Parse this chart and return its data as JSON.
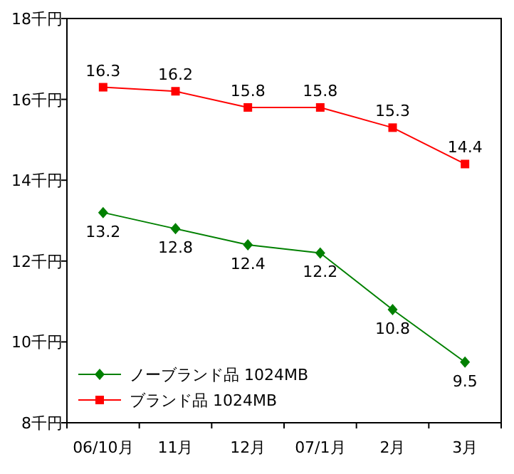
{
  "chart_data": {
    "type": "line",
    "categories": [
      "06/10月",
      "11月",
      "12月",
      "07/1月",
      "2月",
      "3月"
    ],
    "ylim": [
      8,
      18
    ],
    "yticks": [
      {
        "value": 8,
        "label": "8千円"
      },
      {
        "value": 10,
        "label": "10千円"
      },
      {
        "value": 12,
        "label": "12千円"
      },
      {
        "value": 14,
        "label": "14千円"
      },
      {
        "value": 16,
        "label": "16千円"
      },
      {
        "value": 18,
        "label": "18千円"
      }
    ],
    "series": [
      {
        "name": "ノーブランド品 1024MB",
        "color": "#008000",
        "marker": "diamond",
        "values": [
          13.2,
          12.8,
          12.4,
          12.2,
          10.8,
          9.5
        ]
      },
      {
        "name": "ブランド品 1024MB",
        "color": "#ff0000",
        "marker": "square",
        "values": [
          16.3,
          16.2,
          15.8,
          15.8,
          15.3,
          14.4
        ]
      }
    ],
    "data_labels": true,
    "legend": "bottom left",
    "line_style": "solid"
  }
}
